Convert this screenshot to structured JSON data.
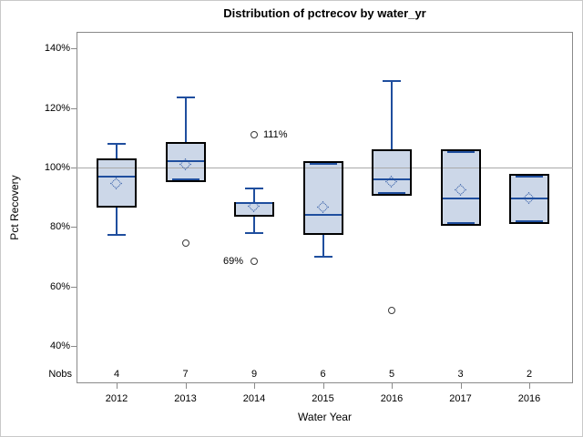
{
  "title": "Distribution of pctrecov by water_yr",
  "colors": {
    "box_fill": "#ccd7e8",
    "box_border": "#000000",
    "whisker": "#1f4e9e",
    "mean_marker": "#2350a0",
    "outlier": "#3a3a3a",
    "reference_line": "#a9a9a9",
    "frame": "#8a8a8a",
    "text": "#000000",
    "figure_border": "#c9c9c9"
  },
  "chart_data": {
    "type": "boxplot",
    "title": "Distribution of pctrecov by water_yr",
    "xlabel": "Water Year",
    "ylabel": "Pct Recovery",
    "nobs_label": "Nobs",
    "legend": "none",
    "grid": "off",
    "ylim": [
      28,
      146
    ],
    "reference_line": 100,
    "y_ticks": [
      {
        "value": 140,
        "label": "140%"
      },
      {
        "value": 120,
        "label": "120%"
      },
      {
        "value": 100,
        "label": "100%"
      },
      {
        "value": 80,
        "label": "80%"
      },
      {
        "value": 60,
        "label": "60%"
      },
      {
        "value": 40,
        "label": "40%"
      }
    ],
    "categories": [
      "2012",
      "2013",
      "2014",
      "2015",
      "2016",
      "2017",
      "2016"
    ],
    "nobs": [
      4,
      7,
      9,
      6,
      5,
      3,
      2
    ],
    "boxes": [
      {
        "category": "2012",
        "nobs": 4,
        "whisker_low": 77.5,
        "q1": 86.5,
        "median": 97,
        "mean": 94.5,
        "q3": 103,
        "whisker_high": 108,
        "outliers": []
      },
      {
        "category": "2013",
        "nobs": 7,
        "whisker_low": 95,
        "q1": 95,
        "median": 102,
        "mean": 101,
        "q3": 108.5,
        "whisker_high": 123.5,
        "outliers": [
          {
            "value": 74.5,
            "label": "",
            "side": "none"
          }
        ]
      },
      {
        "category": "2014",
        "nobs": 9,
        "whisker_low": 78,
        "q1": 83.5,
        "median": 88,
        "mean": 87,
        "q3": 88.5,
        "whisker_high": 93,
        "outliers": [
          {
            "value": 111,
            "label": "111%",
            "side": "right"
          },
          {
            "value": 68.5,
            "label": "69%",
            "side": "left"
          }
        ]
      },
      {
        "category": "2015",
        "nobs": 6,
        "whisker_low": 70,
        "q1": 77.5,
        "median": 84,
        "mean": 86.5,
        "q3": 102,
        "whisker_high": 102,
        "outliers": []
      },
      {
        "category": "2016",
        "nobs": 5,
        "whisker_low": 90.5,
        "q1": 90.5,
        "median": 96,
        "mean": 95,
        "q3": 106,
        "whisker_high": 129,
        "outliers": [
          {
            "value": 52,
            "label": "",
            "side": "none"
          }
        ]
      },
      {
        "category": "2017",
        "nobs": 3,
        "whisker_low": 80.5,
        "q1": 80.5,
        "median": 89.5,
        "mean": 92.5,
        "q3": 106,
        "whisker_high": 106,
        "outliers": []
      },
      {
        "category": "2016",
        "nobs": 2,
        "whisker_low": 81,
        "q1": 81,
        "median": 89.5,
        "mean": 89.5,
        "q3": 98,
        "whisker_high": 98,
        "outliers": []
      }
    ]
  }
}
